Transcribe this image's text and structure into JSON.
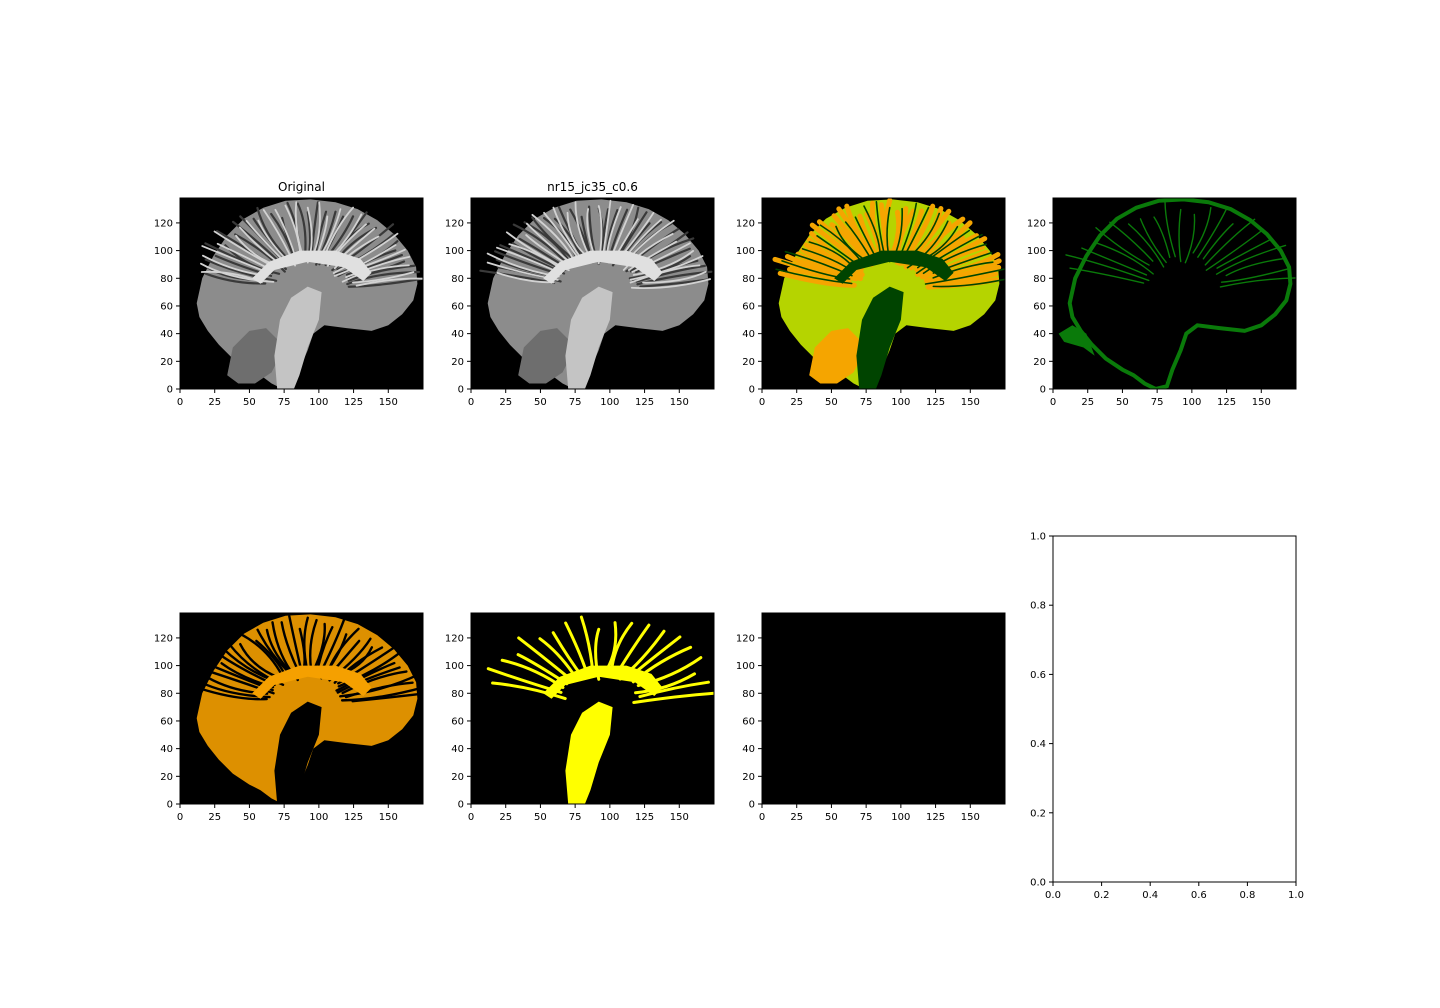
{
  "chart_data": [
    {
      "type": "heatmap",
      "title": "Original",
      "content": "sagittal brain MRI slice, grayscale",
      "colors": {
        "background": "#000000",
        "tissue": "#b5b5b5"
      },
      "xlim": [
        0,
        175
      ],
      "ylim": [
        0,
        138
      ],
      "x_ticks": [
        0,
        25,
        50,
        75,
        100,
        125,
        150
      ],
      "y_ticks": [
        0,
        20,
        40,
        60,
        80,
        100,
        120
      ]
    },
    {
      "type": "heatmap",
      "title": "nr15_jc35_c0.6",
      "content": "sagittal brain MRI slice, grayscale",
      "colors": {
        "background": "#000000",
        "tissue": "#b5b5b5"
      },
      "xlim": [
        0,
        175
      ],
      "ylim": [
        0,
        138
      ],
      "x_ticks": [
        0,
        25,
        50,
        75,
        100,
        125,
        150
      ],
      "y_ticks": [
        0,
        20,
        40,
        60,
        80,
        100,
        120
      ]
    },
    {
      "type": "heatmap",
      "title": "",
      "content": "segmentation label map, all classes",
      "colors": {
        "background": "#000000",
        "class_a": "#f5a500",
        "class_b": "#b5d400",
        "class_c": "#004400"
      },
      "xlim": [
        0,
        175
      ],
      "ylim": [
        0,
        138
      ],
      "x_ticks": [
        0,
        25,
        50,
        75,
        100,
        125,
        150
      ],
      "y_ticks": [
        0,
        20,
        40,
        60,
        80,
        100,
        120
      ]
    },
    {
      "type": "heatmap",
      "title": "",
      "content": "segmentation class mask (dark green)",
      "colors": {
        "background": "#000000",
        "mask": "#0a7a0a"
      },
      "xlim": [
        0,
        175
      ],
      "ylim": [
        0,
        138
      ],
      "x_ticks": [
        0,
        25,
        50,
        75,
        100,
        125,
        150
      ],
      "y_ticks": [
        0,
        20,
        40,
        60,
        80,
        100,
        120
      ]
    },
    {
      "type": "heatmap",
      "title": "",
      "content": "segmentation class mask (orange)",
      "colors": {
        "background": "#000000",
        "mask": "#f5a000"
      },
      "xlim": [
        0,
        175
      ],
      "ylim": [
        0,
        138
      ],
      "x_ticks": [
        0,
        25,
        50,
        75,
        100,
        125,
        150
      ],
      "y_ticks": [
        0,
        20,
        40,
        60,
        80,
        100,
        120
      ]
    },
    {
      "type": "heatmap",
      "title": "",
      "content": "segmentation class mask (yellow)",
      "colors": {
        "background": "#000000",
        "mask": "#ffff00"
      },
      "xlim": [
        0,
        175
      ],
      "ylim": [
        0,
        138
      ],
      "x_ticks": [
        0,
        25,
        50,
        75,
        100,
        125,
        150
      ],
      "y_ticks": [
        0,
        20,
        40,
        60,
        80,
        100,
        120
      ]
    },
    {
      "type": "heatmap",
      "title": "",
      "content": "empty mask (all black)",
      "colors": {
        "background": "#000000"
      },
      "xlim": [
        0,
        175
      ],
      "ylim": [
        0,
        138
      ],
      "x_ticks": [
        0,
        25,
        50,
        75,
        100,
        125,
        150
      ],
      "y_ticks": [
        0,
        20,
        40,
        60,
        80,
        100,
        120
      ]
    },
    {
      "type": "line",
      "title": "",
      "content": "empty axes",
      "series": [],
      "xlim": [
        0,
        1
      ],
      "ylim": [
        0,
        1
      ],
      "x_ticks": [
        0.0,
        0.2,
        0.4,
        0.6,
        0.8,
        1.0
      ],
      "y_ticks": [
        0.0,
        0.2,
        0.4,
        0.6,
        0.8,
        1.0
      ]
    }
  ]
}
